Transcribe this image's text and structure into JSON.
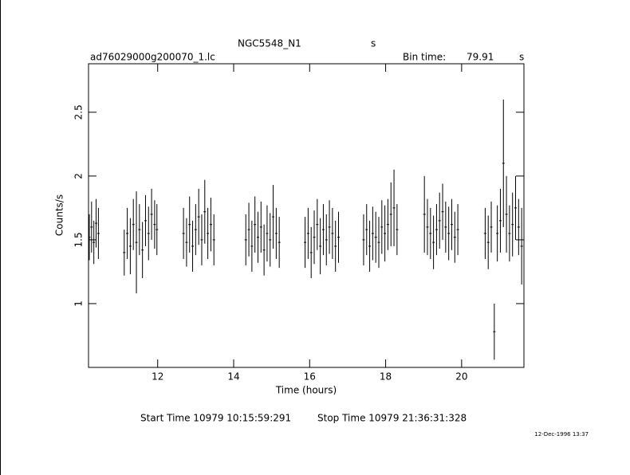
{
  "chart_data": {
    "type": "errorbar",
    "title": "NGC5548_N1",
    "title_suffix": "s",
    "subtitle": "ad76029000g200070_1.lc",
    "bin_time_label": "Bin time:",
    "bin_time": 79.91,
    "bin_time_unit": "s",
    "x_label": "Time (hours)",
    "y_label": "Counts/s",
    "start_time": "Start Time 10979 10:15:59:291",
    "stop_time": "Stop Time 10979 21:36:31:328",
    "timestamp": "12-Dec-1996 13:37",
    "color": "#000000",
    "xlim": [
      10.18,
      21.64
    ],
    "ylim": [
      0.5,
      2.88
    ],
    "xticks": [
      12,
      14,
      16,
      18,
      20
    ],
    "yticks": [
      1,
      1.5,
      2,
      2.5
    ],
    "x": [
      10.2,
      10.26,
      10.32,
      10.38,
      10.44,
      11.12,
      11.2,
      11.28,
      11.36,
      11.44,
      11.52,
      11.6,
      11.68,
      11.76,
      11.84,
      11.92,
      11.98,
      12.68,
      12.76,
      12.84,
      12.92,
      13.0,
      13.08,
      13.16,
      13.24,
      13.32,
      13.4,
      13.48,
      14.32,
      14.4,
      14.48,
      14.56,
      14.64,
      14.72,
      14.8,
      14.88,
      14.96,
      15.04,
      15.12,
      15.2,
      15.88,
      15.96,
      16.04,
      16.12,
      16.2,
      16.28,
      16.36,
      16.44,
      16.52,
      16.6,
      16.68,
      16.76,
      17.42,
      17.5,
      17.58,
      17.66,
      17.74,
      17.82,
      17.9,
      17.98,
      18.06,
      18.14,
      18.22,
      18.3,
      19.02,
      19.1,
      19.18,
      19.26,
      19.34,
      19.42,
      19.5,
      19.58,
      19.66,
      19.74,
      19.82,
      19.9,
      20.62,
      20.7,
      20.78,
      20.86,
      20.94,
      21.02,
      21.1,
      21.18,
      21.26,
      21.34,
      21.42,
      21.5,
      21.58
    ],
    "values": [
      1.52,
      1.6,
      1.48,
      1.63,
      1.55,
      1.4,
      1.55,
      1.45,
      1.62,
      1.48,
      1.58,
      1.42,
      1.65,
      1.55,
      1.7,
      1.62,
      1.58,
      1.55,
      1.48,
      1.62,
      1.45,
      1.58,
      1.68,
      1.5,
      1.72,
      1.55,
      1.62,
      1.5,
      1.5,
      1.58,
      1.45,
      1.62,
      1.52,
      1.6,
      1.42,
      1.55,
      1.5,
      1.68,
      1.55,
      1.48,
      1.48,
      1.55,
      1.4,
      1.52,
      1.62,
      1.45,
      1.58,
      1.5,
      1.6,
      1.55,
      1.45,
      1.52,
      1.5,
      1.58,
      1.45,
      1.55,
      1.52,
      1.48,
      1.6,
      1.55,
      1.62,
      1.7,
      1.75,
      1.58,
      1.7,
      1.6,
      1.55,
      1.48,
      1.58,
      1.65,
      1.72,
      1.6,
      1.55,
      1.62,
      1.52,
      1.58,
      1.55,
      1.48,
      1.6,
      0.78,
      1.55,
      1.65,
      2.1,
      1.7,
      1.55,
      1.62,
      1.75,
      1.6,
      1.45
    ],
    "errors": [
      0.18,
      0.2,
      0.17,
      0.19,
      0.2,
      0.18,
      0.2,
      0.22,
      0.2,
      0.4,
      0.2,
      0.22,
      0.2,
      0.21,
      0.2,
      0.19,
      0.2,
      0.2,
      0.19,
      0.22,
      0.2,
      0.2,
      0.22,
      0.2,
      0.25,
      0.2,
      0.21,
      0.2,
      0.2,
      0.21,
      0.2,
      0.22,
      0.2,
      0.2,
      0.2,
      0.22,
      0.21,
      0.25,
      0.2,
      0.2,
      0.2,
      0.2,
      0.2,
      0.21,
      0.2,
      0.22,
      0.2,
      0.2,
      0.21,
      0.2,
      0.2,
      0.2,
      0.2,
      0.2,
      0.2,
      0.21,
      0.2,
      0.2,
      0.21,
      0.22,
      0.2,
      0.25,
      0.3,
      0.2,
      0.3,
      0.22,
      0.2,
      0.21,
      0.2,
      0.22,
      0.22,
      0.2,
      0.21,
      0.2,
      0.2,
      0.2,
      0.2,
      0.21,
      0.2,
      0.22,
      0.22,
      0.25,
      0.5,
      0.3,
      0.22,
      0.25,
      0.25,
      0.22,
      0.3
    ]
  }
}
